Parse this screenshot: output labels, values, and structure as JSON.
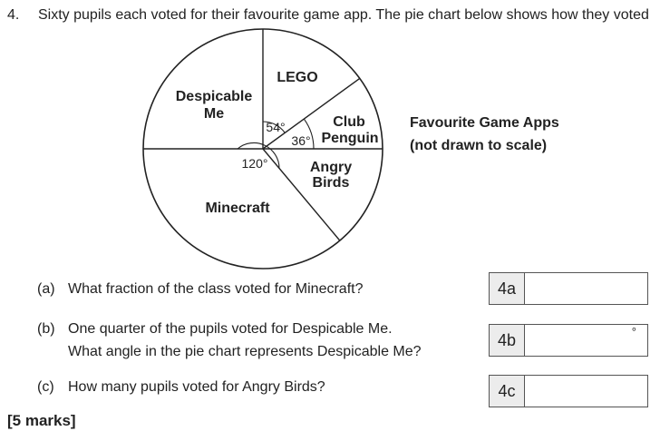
{
  "question": {
    "number": "4.",
    "stem": "Sixty pupils each voted for their favourite game app. The pie chart below shows how they voted"
  },
  "chart_data": {
    "type": "pie",
    "title": "Favourite Game Apps",
    "subtitle": "(not drawn to scale)",
    "slices": [
      {
        "label": "LEGO",
        "angle": 54
      },
      {
        "label": "Club Penguin",
        "angle": 36
      },
      {
        "label": "Angry Birds",
        "angle": null
      },
      {
        "label": "Minecraft",
        "angle": 120
      },
      {
        "label": "Despicable Me",
        "angle": null
      }
    ],
    "angle_labels": [
      "54°",
      "36°",
      "120°"
    ]
  },
  "slice_labels": {
    "despicable_1": "Despicable",
    "despicable_2": "Me",
    "lego": "LEGO",
    "club_1": "Club",
    "club_2": "Penguin",
    "angry_1": "Angry",
    "angry_2": "Birds",
    "minecraft": "Minecraft"
  },
  "parts": {
    "a": {
      "label": "(a)",
      "text": "What fraction of the class voted for Minecraft?"
    },
    "b": {
      "label": "(b)",
      "text_1": "One quarter of the pupils voted for Despicable Me.",
      "text_2": "What angle in the pie chart represents Despicable Me?"
    },
    "c": {
      "label": "(c)",
      "text": "How many pupils voted for Angry Birds?"
    }
  },
  "answer_boxes": {
    "a": {
      "tag": "4a",
      "value": ""
    },
    "b": {
      "tag": "4b",
      "value": "",
      "unit": "°"
    },
    "c": {
      "tag": "4c",
      "value": ""
    }
  },
  "marks": "[5 marks]"
}
